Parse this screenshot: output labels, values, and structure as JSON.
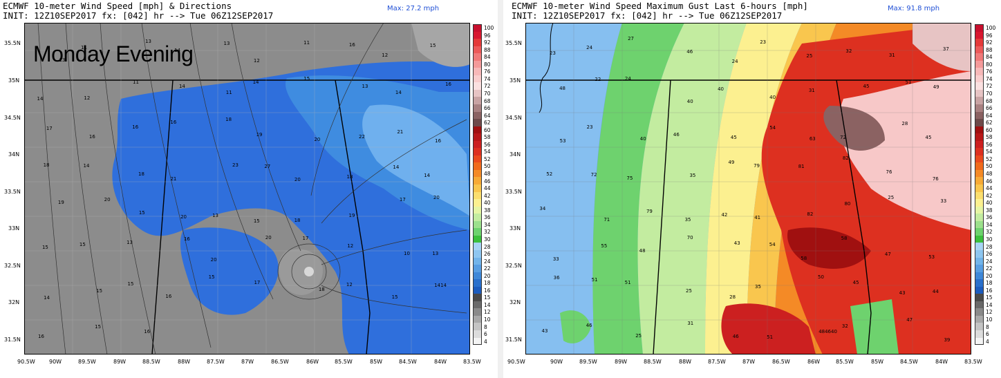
{
  "left_panel": {
    "title_line1": "ECMWF 10-meter Wind Speed [mph] & Directions",
    "title_line2": "INIT: 12Z10SEP2017 fx: [042] hr --> Tue 06Z12SEP2017",
    "max_label": "Max: 27.2 mph",
    "overlay_text": "Monday Evening",
    "lat_labels": [
      "35.5N",
      "35N",
      "34.5N",
      "34N",
      "33.5N",
      "33N",
      "32.5N",
      "32N",
      "31.5N"
    ],
    "lon_labels": [
      "90.5W",
      "90W",
      "89.5W",
      "89W",
      "88.5W",
      "88W",
      "87.5W",
      "87W",
      "86.5W",
      "86W",
      "85.5W",
      "85W",
      "84.5W",
      "84W",
      "83.5W"
    ],
    "colorbar_labels": [
      "100",
      "96",
      "92",
      "88",
      "84",
      "80",
      "76",
      "74",
      "72",
      "70",
      "68",
      "66",
      "64",
      "62",
      "60",
      "58",
      "56",
      "54",
      "52",
      "50",
      "48",
      "46",
      "44",
      "42",
      "40",
      "38",
      "36",
      "34",
      "32",
      "30",
      "28",
      "26",
      "24",
      "22",
      "20",
      "18",
      "16",
      "15",
      "14",
      "12",
      "10",
      "8",
      "6",
      "4"
    ],
    "point_values": [
      "13",
      "11",
      "13",
      "14",
      "13",
      "12",
      "11",
      "16",
      "12",
      "15",
      "14",
      "12",
      "11",
      "14",
      "11",
      "14",
      "15",
      "13",
      "14",
      "16",
      "17",
      "16",
      "16",
      "16",
      "18",
      "19",
      "20",
      "22",
      "21",
      "16",
      "18",
      "14",
      "18",
      "21",
      "23",
      "27",
      "20",
      "18",
      "14",
      "14",
      "19",
      "20",
      "15",
      "20",
      "13",
      "15",
      "18",
      "19",
      "17",
      "20",
      "15",
      "15",
      "13",
      "16",
      "20",
      "20",
      "17",
      "12",
      "10",
      "13",
      "14",
      "15",
      "15",
      "16",
      "15",
      "17",
      "18",
      "12",
      "15",
      "1414",
      "16",
      "15",
      "16"
    ]
  },
  "right_panel": {
    "title_line1": "ECMWF 10-meter Wind Speed Maximum Gust Last 6-hours [mph]",
    "title_line2": "INIT: 12Z10SEP2017 fx: [042] hr --> Tue 06Z12SEP2017",
    "max_label": "Max: 91.8 mph",
    "lat_labels": [
      "35.5N",
      "35N",
      "34.5N",
      "34N",
      "33.5N",
      "33N",
      "32.5N",
      "32N",
      "31.5N"
    ],
    "lon_labels": [
      "90.5W",
      "90W",
      "89.5W",
      "89W",
      "88.5W",
      "88W",
      "87.5W",
      "87W",
      "86.5W",
      "86W",
      "85.5W",
      "85W",
      "84.5W",
      "84W",
      "83.5W"
    ],
    "colorbar_labels": [
      "100",
      "96",
      "92",
      "88",
      "84",
      "80",
      "76",
      "74",
      "72",
      "70",
      "68",
      "66",
      "64",
      "62",
      "60",
      "58",
      "56",
      "54",
      "52",
      "50",
      "48",
      "46",
      "44",
      "42",
      "40",
      "38",
      "36",
      "34",
      "32",
      "30",
      "28",
      "26",
      "24",
      "22",
      "20",
      "18",
      "16",
      "15",
      "14",
      "12",
      "10",
      "8",
      "6",
      "4"
    ],
    "point_values": [
      "23",
      "24",
      "27",
      "46",
      "24",
      "23",
      "25",
      "32",
      "31",
      "37",
      "48",
      "22",
      "24",
      "40",
      "40",
      "40",
      "31",
      "45",
      "51",
      "49",
      "53",
      "23",
      "40",
      "46",
      "45",
      "54",
      "63",
      "72",
      "28",
      "45",
      "52",
      "72",
      "75",
      "35",
      "49",
      "79",
      "81",
      "82",
      "76",
      "76",
      "34",
      "71",
      "79",
      "35",
      "42",
      "41",
      "82",
      "80",
      "25",
      "33",
      "33",
      "55",
      "48",
      "70",
      "43",
      "54",
      "58",
      "58",
      "47",
      "53",
      "36",
      "51",
      "51",
      "25",
      "28",
      "35",
      "50",
      "45",
      "43",
      "44",
      "43",
      "46",
      "25",
      "31",
      "46",
      "51",
      "484640",
      "32",
      "47",
      "39"
    ]
  },
  "colorbar_colors": [
    "#c8102e",
    "#d81830",
    "#e43a3a",
    "#ec5a5a",
    "#f07a7a",
    "#f49a9a",
    "#f7b8b8",
    "#f9cdcd",
    "#fbe0e0",
    "#e7c4c4",
    "#c9a3a3",
    "#a98181",
    "#8b6262",
    "#6e4a4a",
    "#a01010",
    "#b81818",
    "#cc2020",
    "#dd3020",
    "#ea4a1e",
    "#f06a1c",
    "#f48a26",
    "#f7aa36",
    "#f9c64e",
    "#fbde6e",
    "#fcf090",
    "#e6f5a4",
    "#c3eca0",
    "#9ce08c",
    "#6ed26e",
    "#3cc03c",
    "#a8d4f4",
    "#8ec6f0",
    "#72b4ea",
    "#589ee2",
    "#3f88d8",
    "#2a70cc",
    "#1c5cbe",
    "#4a4a4a",
    "#6a6a6a",
    "#8a8a8a",
    "#a8a8a8",
    "#c4c4c4",
    "#dcdcdc",
    "#f4f4f4"
  ]
}
